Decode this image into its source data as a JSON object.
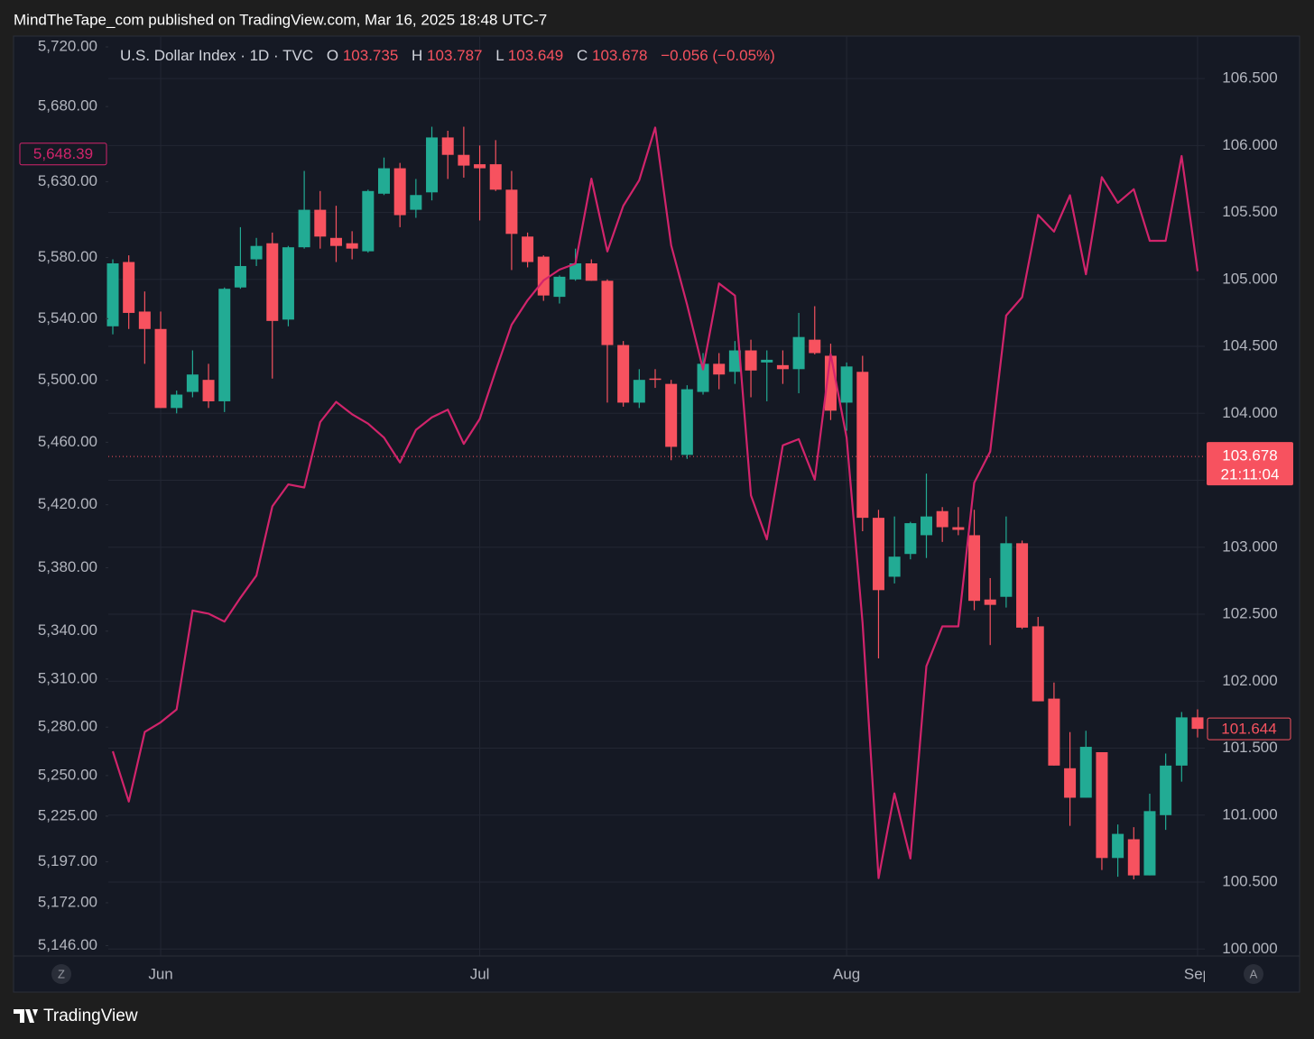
{
  "header": {
    "text": "MindTheTape_com published on TradingView.com, Mar 16, 2025 18:48 UTC-7"
  },
  "footer": {
    "brand": "TradingView"
  },
  "buttons": {
    "left": "Z",
    "right": "A"
  },
  "chart_data": {
    "type": "candlestick",
    "legend": {
      "symbol": "U.S. Dollar Index · 1D · TVC",
      "open_label": "O",
      "open": 103.735,
      "high_label": "H",
      "high": 103.787,
      "low_label": "L",
      "low": 103.649,
      "close_label": "C",
      "close": 103.678,
      "change": "−0.056 (−0.05%)",
      "color": "#f7525f"
    },
    "categories": [
      null,
      null,
      null,
      "Jun",
      null,
      null,
      null,
      null,
      null,
      null,
      null,
      null,
      null,
      null,
      null,
      null,
      null,
      null,
      null,
      null,
      null,
      null,
      null,
      "Jul",
      null,
      null,
      null,
      null,
      null,
      null,
      null,
      null,
      null,
      null,
      null,
      null,
      null,
      null,
      null,
      null,
      null,
      null,
      null,
      null,
      null,
      null,
      "Aug",
      null,
      null,
      null,
      null,
      null,
      null,
      null,
      null,
      null,
      null,
      null,
      null,
      null,
      null,
      null,
      null,
      null,
      null,
      null,
      null,
      null,
      "Sep"
    ],
    "series": [
      {
        "type": "candlestick",
        "axis": "y2",
        "up_color": "#22ab94",
        "down_color": "#f7525f",
        "open": [
          104.65,
          105.13,
          104.76,
          104.63,
          104.04,
          104.16,
          104.25,
          104.09,
          104.94,
          105.15,
          105.27,
          104.7,
          105.24,
          105.52,
          105.31,
          105.27,
          105.21,
          105.64,
          105.83,
          105.52,
          105.65,
          106.06,
          105.93,
          105.86,
          105.86,
          105.67,
          105.32,
          105.17,
          104.87,
          105.0,
          105.12,
          104.99,
          104.51,
          104.08,
          104.26,
          104.22,
          103.69,
          104.16,
          104.37,
          104.31,
          104.47,
          104.38,
          104.36,
          104.33,
          104.55,
          104.43,
          104.08,
          104.31,
          103.22,
          102.78,
          102.95,
          103.09,
          103.27,
          103.15,
          103.09,
          102.61,
          102.63,
          103.03,
          102.41,
          101.87,
          101.35,
          101.13,
          101.47,
          100.68,
          100.82,
          100.55,
          101.0,
          101.37,
          101.73
        ],
        "high": [
          105.15,
          105.18,
          104.91,
          104.76,
          104.17,
          104.47,
          104.37,
          104.94,
          105.39,
          105.31,
          105.35,
          105.25,
          105.81,
          105.66,
          105.55,
          105.36,
          105.67,
          105.91,
          105.87,
          105.75,
          106.14,
          106.11,
          106.14,
          106.0,
          106.04,
          105.81,
          105.35,
          105.18,
          105.03,
          105.23,
          105.15,
          105.0,
          104.54,
          104.33,
          104.33,
          104.25,
          104.21,
          104.45,
          104.45,
          104.54,
          104.55,
          104.47,
          104.47,
          104.75,
          104.8,
          104.52,
          104.38,
          104.43,
          103.28,
          103.23,
          103.19,
          103.55,
          103.3,
          103.3,
          103.28,
          102.77,
          103.23,
          103.05,
          102.48,
          101.99,
          101.62,
          101.63,
          101.47,
          100.93,
          100.91,
          101.16,
          101.46,
          101.77,
          101.79
        ],
        "low": [
          104.59,
          104.63,
          104.37,
          104.04,
          104.0,
          104.12,
          104.04,
          104.01,
          104.93,
          105.1,
          104.26,
          104.65,
          105.23,
          105.23,
          105.13,
          105.15,
          105.2,
          105.63,
          105.39,
          105.46,
          105.59,
          105.75,
          105.76,
          105.44,
          105.66,
          105.07,
          105.09,
          104.84,
          104.82,
          104.99,
          104.99,
          104.08,
          104.05,
          104.04,
          104.19,
          103.65,
          103.66,
          104.14,
          104.18,
          104.22,
          104.12,
          104.09,
          104.22,
          104.15,
          104.44,
          103.95,
          103.87,
          103.12,
          102.17,
          102.73,
          102.91,
          102.92,
          103.04,
          103.09,
          102.53,
          102.27,
          102.55,
          102.39,
          101.85,
          101.37,
          100.92,
          101.13,
          100.59,
          100.54,
          100.52,
          100.55,
          100.89,
          101.25,
          101.58
        ],
        "close": [
          105.12,
          104.75,
          104.63,
          104.04,
          104.14,
          104.29,
          104.09,
          104.93,
          105.1,
          105.25,
          104.69,
          105.24,
          105.52,
          105.32,
          105.25,
          105.23,
          105.66,
          105.83,
          105.48,
          105.63,
          106.06,
          105.93,
          105.85,
          105.83,
          105.67,
          105.34,
          105.13,
          104.88,
          105.02,
          105.12,
          104.99,
          104.51,
          104.08,
          104.25,
          104.25,
          103.75,
          104.18,
          104.37,
          104.29,
          104.47,
          104.32,
          104.4,
          104.33,
          104.57,
          104.45,
          104.02,
          104.35,
          103.22,
          102.68,
          102.93,
          103.18,
          103.23,
          103.15,
          103.13,
          102.6,
          102.57,
          103.03,
          102.4,
          101.85,
          101.37,
          101.13,
          101.51,
          100.68,
          100.86,
          100.55,
          101.03,
          101.37,
          101.73,
          101.644
        ]
      },
      {
        "type": "line",
        "axis": "y",
        "color": "#d1246b",
        "values": [
          5265,
          5234,
          5277,
          5283,
          5291,
          5353,
          5351,
          5346,
          5361,
          5375,
          5419,
          5433,
          5431,
          5473,
          5486,
          5478,
          5472,
          5463,
          5447,
          5468,
          5476,
          5481,
          5459,
          5475,
          5506,
          5536,
          5552,
          5565,
          5572,
          5576,
          5632,
          5584,
          5614,
          5631,
          5666,
          5588,
          5549,
          5507,
          5563,
          5555,
          5426,
          5398,
          5458,
          5462,
          5436,
          5517,
          5463,
          5345,
          5187,
          5239,
          5199,
          5318,
          5343,
          5343,
          5434,
          5454,
          5542,
          5554,
          5608,
          5597,
          5621,
          5569,
          5633,
          5616,
          5625,
          5591,
          5591,
          5647,
          5571
        ]
      }
    ],
    "ylog": true,
    "ylim": [
      5139.7,
      5727.3
    ],
    "yticks": [
      {
        "value": 5720,
        "label": "5,720.00"
      },
      {
        "value": 5680,
        "label": "5,680.00"
      },
      {
        "value": 5630,
        "label": "5,630.00"
      },
      {
        "value": 5580,
        "label": "5,580.00"
      },
      {
        "value": 5540,
        "label": "5,540.00"
      },
      {
        "value": 5500,
        "label": "5,500.00"
      },
      {
        "value": 5460,
        "label": "5,460.00"
      },
      {
        "value": 5420,
        "label": "5,420.00"
      },
      {
        "value": 5380,
        "label": "5,380.00"
      },
      {
        "value": 5340,
        "label": "5,340.00"
      },
      {
        "value": 5310,
        "label": "5,310.00"
      },
      {
        "value": 5280,
        "label": "5,280.00"
      },
      {
        "value": 5250,
        "label": "5,250.00"
      },
      {
        "value": 5225,
        "label": "5,225.00"
      },
      {
        "value": 5197,
        "label": "5,197.00"
      },
      {
        "value": 5172,
        "label": "5,172.00"
      },
      {
        "value": 5146,
        "label": "5,146.00"
      }
    ],
    "y2lim": [
      99.948,
      106.817
    ],
    "y2ticks": [
      {
        "value": 106.5,
        "label": "106.500"
      },
      {
        "value": 106,
        "label": "106.000"
      },
      {
        "value": 105.5,
        "label": "105.500"
      },
      {
        "value": 105,
        "label": "105.000"
      },
      {
        "value": 104.5,
        "label": "104.500"
      },
      {
        "value": 104,
        "label": "104.000"
      },
      {
        "value": 103.5,
        "label": "103.500"
      },
      {
        "value": 103,
        "label": "103.000"
      },
      {
        "value": 102.5,
        "label": "102.500"
      },
      {
        "value": 102,
        "label": "102.000"
      },
      {
        "value": 101.5,
        "label": "101.500"
      },
      {
        "value": 101,
        "label": "101.000"
      },
      {
        "value": 100.5,
        "label": "100.500"
      },
      {
        "value": 100,
        "label": "100.000"
      }
    ],
    "grid": true,
    "line_label": {
      "value": 5648.39,
      "label": "5,648.39"
    },
    "price_line": {
      "value": 103.678,
      "countdown": "21:11:04",
      "color": "#f7525f"
    }
  }
}
